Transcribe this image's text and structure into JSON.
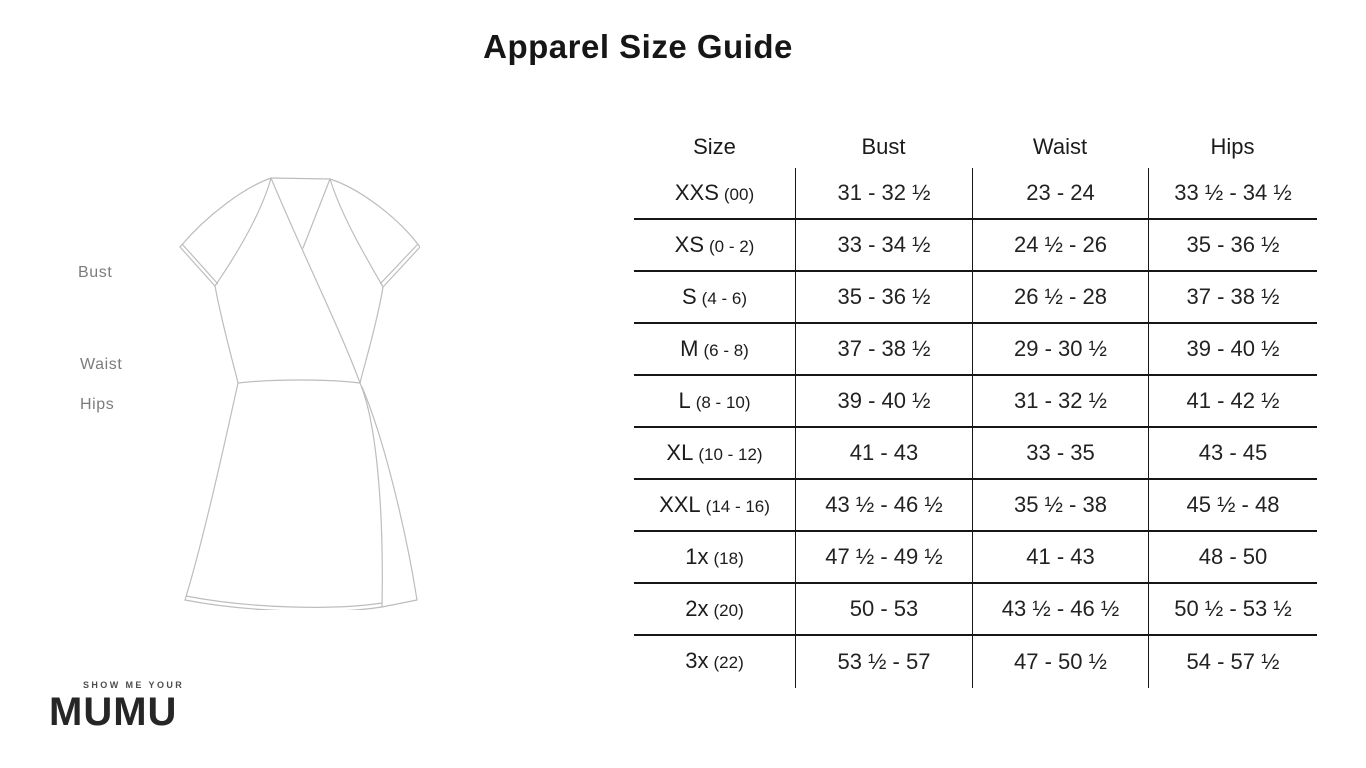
{
  "page": {
    "title": "Apparel Size Guide"
  },
  "diagram": {
    "labels": [
      "Bust",
      "Waist",
      "Hips"
    ],
    "illustration": "wrap-dress-line-sketch"
  },
  "chart_data": {
    "type": "table",
    "title": "Apparel Size Guide",
    "columns": [
      "Size",
      "Bust",
      "Waist",
      "Hips"
    ],
    "rows": [
      {
        "size": "XXS",
        "size_note": "(00)",
        "bust": "31 - 32 ½",
        "waist": "23 - 24",
        "hips": "33 ½ - 34 ½"
      },
      {
        "size": "XS",
        "size_note": "(0 - 2)",
        "bust": "33 - 34 ½",
        "waist": "24 ½ - 26",
        "hips": "35 - 36 ½"
      },
      {
        "size": "S",
        "size_note": "(4 - 6)",
        "bust": "35 - 36 ½",
        "waist": "26 ½ - 28",
        "hips": "37 - 38 ½"
      },
      {
        "size": "M",
        "size_note": "(6 - 8)",
        "bust": "37 - 38 ½",
        "waist": "29 - 30 ½",
        "hips": "39 - 40 ½"
      },
      {
        "size": "L",
        "size_note": "(8 - 10)",
        "bust": "39 - 40 ½",
        "waist": "31 - 32 ½",
        "hips": "41 - 42 ½"
      },
      {
        "size": "XL",
        "size_note": "(10 - 12)",
        "bust": "41 - 43",
        "waist": "33 - 35",
        "hips": "43 - 45"
      },
      {
        "size": "XXL",
        "size_note": "(14 - 16)",
        "bust": "43 ½ - 46 ½",
        "waist": "35 ½ - 38",
        "hips": "45 ½ - 48"
      },
      {
        "size": "1x",
        "size_note": "(18)",
        "bust": "47 ½ - 49 ½",
        "waist": "41 - 43",
        "hips": "48 - 50"
      },
      {
        "size": "2x",
        "size_note": "(20)",
        "bust": "50 - 53",
        "waist": "43 ½ - 46 ½",
        "hips": "50 ½ - 53 ½"
      },
      {
        "size": "3x",
        "size_note": "(22)",
        "bust": "53 ½ - 57",
        "waist": "47 - 50 ½",
        "hips": "54 - 57 ½"
      }
    ]
  },
  "logo": {
    "tagline": "SHOW ME YOUR",
    "brand": "MUMU"
  },
  "colors": {
    "text": "#1f1f1f",
    "table_line": "#161616",
    "muted_label": "#7c7c7c",
    "sketch_stroke": "#bdbdbd",
    "brand": "#262626"
  }
}
